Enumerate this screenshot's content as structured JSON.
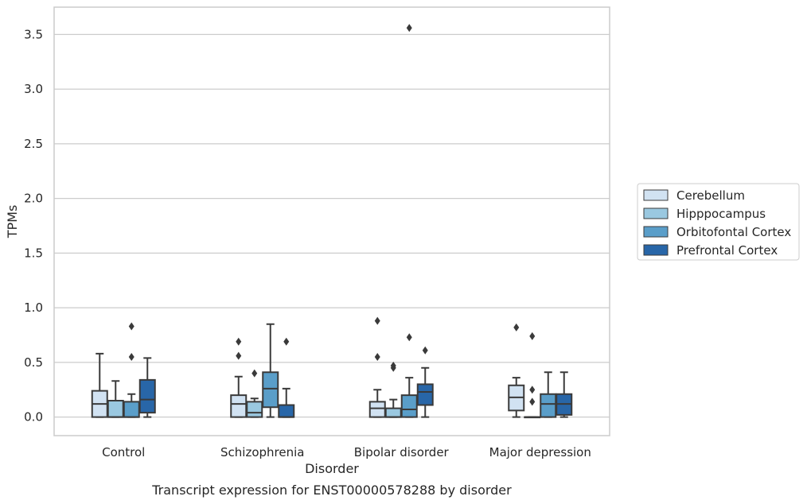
{
  "chart_data": {
    "type": "box",
    "caption": "Transcript expression for ENST00000578288 by disorder",
    "xlabel": "Disorder",
    "ylabel": "TPMs",
    "ylim": [
      -0.17,
      3.75
    ],
    "yticks": [
      "0.0",
      "0.5",
      "1.0",
      "1.5",
      "2.0",
      "2.5",
      "3.0",
      "3.5"
    ],
    "ytick_values": [
      0,
      0.5,
      1.0,
      1.5,
      2.0,
      2.5,
      3.0,
      3.5
    ],
    "grid": true,
    "legend_position": "right",
    "categories": [
      "Control",
      "Schizophrenia",
      "Bipolar disorder",
      "Major depression"
    ],
    "series": [
      {
        "name": "Cerebellum",
        "color": "#d1e2f2",
        "boxes": [
          {
            "whislo": 0.0,
            "q1": 0.0,
            "med": 0.12,
            "q3": 0.24,
            "whishi": 0.58,
            "fliers": []
          },
          {
            "whislo": 0.0,
            "q1": 0.0,
            "med": 0.12,
            "q3": 0.2,
            "whishi": 0.37,
            "fliers": [
              0.56,
              0.69
            ]
          },
          {
            "whislo": 0.0,
            "q1": 0.0,
            "med": 0.08,
            "q3": 0.14,
            "whishi": 0.25,
            "fliers": [
              0.55,
              0.88
            ]
          },
          {
            "whislo": 0.0,
            "q1": 0.06,
            "med": 0.18,
            "q3": 0.29,
            "whishi": 0.36,
            "fliers": [
              0.82
            ]
          }
        ]
      },
      {
        "name": "Hipppocampus",
        "color": "#9ac8e0",
        "boxes": [
          {
            "whislo": 0.0,
            "q1": 0.0,
            "med": 0.0,
            "q3": 0.15,
            "whishi": 0.33,
            "fliers": []
          },
          {
            "whislo": 0.0,
            "q1": 0.0,
            "med": 0.04,
            "q3": 0.14,
            "whishi": 0.17,
            "fliers": [
              0.4
            ]
          },
          {
            "whislo": 0.0,
            "q1": 0.0,
            "med": 0.0,
            "q3": 0.08,
            "whishi": 0.16,
            "fliers": [
              0.45,
              0.47
            ]
          },
          {
            "whislo": 0.0,
            "q1": 0.0,
            "med": 0.0,
            "q3": 0.0,
            "whishi": 0.0,
            "fliers": [
              0.14,
              0.25,
              0.74
            ]
          }
        ]
      },
      {
        "name": "Orbitofontal Cortex",
        "color": "#5a9ec9",
        "boxes": [
          {
            "whislo": 0.0,
            "q1": 0.0,
            "med": 0.0,
            "q3": 0.14,
            "whishi": 0.21,
            "fliers": [
              0.55,
              0.83
            ]
          },
          {
            "whislo": 0.0,
            "q1": 0.09,
            "med": 0.26,
            "q3": 0.41,
            "whishi": 0.85,
            "fliers": []
          },
          {
            "whislo": 0.0,
            "q1": 0.0,
            "med": 0.07,
            "q3": 0.2,
            "whishi": 0.36,
            "fliers": [
              0.73,
              3.56
            ]
          },
          {
            "whislo": 0.0,
            "q1": 0.0,
            "med": 0.12,
            "q3": 0.21,
            "whishi": 0.41,
            "fliers": []
          }
        ]
      },
      {
        "name": "Prefrontal Cortex",
        "color": "#2866a8",
        "boxes": [
          {
            "whislo": 0.0,
            "q1": 0.04,
            "med": 0.16,
            "q3": 0.34,
            "whishi": 0.54,
            "fliers": []
          },
          {
            "whislo": 0.0,
            "q1": 0.0,
            "med": 0.0,
            "q3": 0.11,
            "whishi": 0.26,
            "fliers": [
              0.69
            ]
          },
          {
            "whislo": 0.0,
            "q1": 0.11,
            "med": 0.23,
            "q3": 0.3,
            "whishi": 0.45,
            "fliers": [
              0.61
            ]
          },
          {
            "whislo": 0.0,
            "q1": 0.02,
            "med": 0.12,
            "q3": 0.21,
            "whishi": 0.41,
            "fliers": []
          }
        ]
      }
    ]
  }
}
